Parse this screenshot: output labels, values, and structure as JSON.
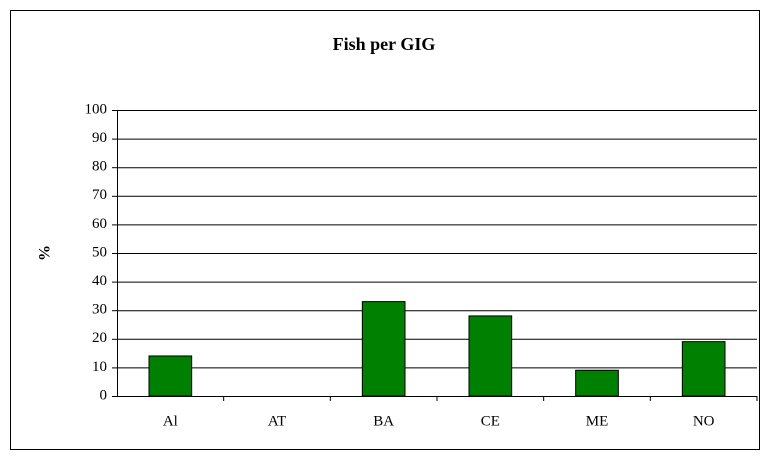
{
  "chart_data": {
    "type": "bar",
    "title": "Fish per GIG",
    "y_label": "%",
    "categories": [
      "Al",
      "AT",
      "BA",
      "CE",
      "ME",
      "NO"
    ],
    "values": [
      14,
      0,
      33,
      28,
      9,
      19
    ],
    "color": "#008000",
    "ylim": [
      0,
      100
    ],
    "yticks": [
      0,
      10,
      20,
      30,
      40,
      50,
      60,
      70,
      80,
      90,
      100
    ],
    "grid": true
  }
}
